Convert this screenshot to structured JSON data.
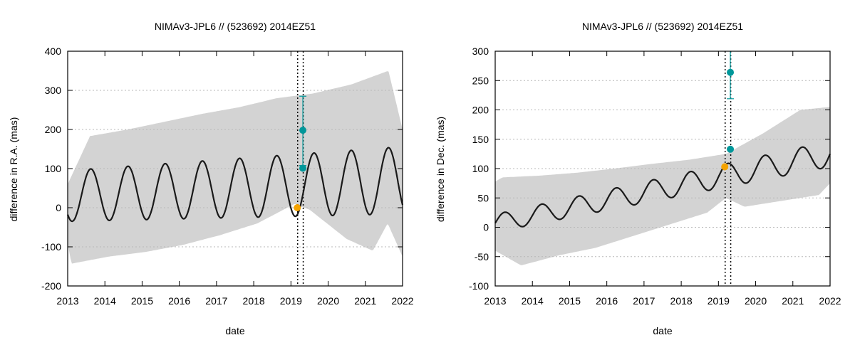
{
  "colors": {
    "envelope": "#d3d3d3",
    "model_line": "#1a1a1a",
    "orange_point": "#f5a300",
    "teal_point": "#00979a",
    "grid": "#b8b8b8",
    "axis": "#000000",
    "vline": "#000000"
  },
  "chart_data": [
    {
      "type": "line",
      "title": "NIMAv3-JPL6 // (523692) 2014EZ51",
      "xlabel": "date",
      "ylabel": "difference in R.A. (mas)",
      "xlim": [
        2013,
        2022
      ],
      "ylim": [
        -200,
        400
      ],
      "xticks": [
        2013,
        2014,
        2015,
        2016,
        2017,
        2018,
        2019,
        2020,
        2021,
        2022
      ],
      "yticks": [
        -200,
        -100,
        0,
        100,
        200,
        300,
        400
      ],
      "grid": "horizontal dotted",
      "legend": "none",
      "model": {
        "period_years": 1.0,
        "peak_phase": 0.62,
        "mean_start": 30,
        "mean_end": 70,
        "amp_start": 65,
        "amp_end": 86
      },
      "envelope": {
        "upper": [
          [
            2013.0,
            60
          ],
          [
            2013.6,
            183
          ],
          [
            2014.62,
            200
          ],
          [
            2015.62,
            220
          ],
          [
            2016.62,
            240
          ],
          [
            2017.62,
            257
          ],
          [
            2018.62,
            280
          ],
          [
            2019.6,
            292
          ],
          [
            2020.62,
            315
          ],
          [
            2021.62,
            350
          ],
          [
            2022.0,
            200
          ]
        ],
        "lower": [
          [
            2013.0,
            -90
          ],
          [
            2013.1,
            -143
          ],
          [
            2014.1,
            -125
          ],
          [
            2015.1,
            -113
          ],
          [
            2016.1,
            -95
          ],
          [
            2017.1,
            -70
          ],
          [
            2018.1,
            -40
          ],
          [
            2019.1,
            10
          ],
          [
            2019.5,
            -5
          ],
          [
            2020.1,
            -50
          ],
          [
            2020.5,
            -80
          ],
          [
            2021.2,
            -110
          ],
          [
            2021.6,
            -40
          ],
          [
            2022.0,
            -125
          ]
        ]
      },
      "vlines": [
        2019.18,
        2019.33
      ],
      "points": [
        {
          "x": 2019.17,
          "y": 0,
          "color": "orange"
        },
        {
          "x": 2019.32,
          "y": 198,
          "yerr_low": 108,
          "yerr_high": 285,
          "color": "teal"
        },
        {
          "x": 2019.32,
          "y": 101,
          "color": "teal"
        }
      ]
    },
    {
      "type": "line",
      "title": "NIMAv3-JPL6 // (523692) 2014EZ51",
      "xlabel": "date",
      "ylabel": "difference in Dec. (mas)",
      "xlim": [
        2013,
        2022
      ],
      "ylim": [
        -100,
        300
      ],
      "xticks": [
        2013,
        2014,
        2015,
        2016,
        2017,
        2018,
        2019,
        2020,
        2021,
        2022
      ],
      "yticks": [
        -100,
        -50,
        0,
        50,
        100,
        150,
        200,
        250,
        300
      ],
      "grid": "horizontal dotted",
      "legend": "none",
      "model": {
        "period_years": 1.0,
        "peak_phase": 0.25,
        "mean_start": 7,
        "mean_end": 125,
        "amp_start": 15,
        "amp_end": 22
      },
      "envelope": {
        "upper": [
          [
            2013.0,
            78
          ],
          [
            2013.2,
            85
          ],
          [
            2014.2,
            88
          ],
          [
            2015.2,
            93
          ],
          [
            2016.2,
            100
          ],
          [
            2017.2,
            108
          ],
          [
            2018.2,
            115
          ],
          [
            2019.2,
            125
          ],
          [
            2020.2,
            160
          ],
          [
            2021.2,
            200
          ],
          [
            2022.0,
            205
          ]
        ],
        "lower": [
          [
            2013.0,
            -40
          ],
          [
            2013.7,
            -65
          ],
          [
            2014.7,
            -48
          ],
          [
            2015.7,
            -35
          ],
          [
            2016.7,
            -15
          ],
          [
            2017.7,
            5
          ],
          [
            2018.7,
            25
          ],
          [
            2019.2,
            50
          ],
          [
            2019.7,
            35
          ],
          [
            2020.7,
            45
          ],
          [
            2021.7,
            55
          ],
          [
            2022.0,
            75
          ]
        ]
      },
      "vlines": [
        2019.18,
        2019.33
      ],
      "points": [
        {
          "x": 2019.17,
          "y": 103,
          "color": "orange"
        },
        {
          "x": 2019.32,
          "y": 264,
          "yerr_low": 219,
          "yerr_high": 300,
          "color": "teal"
        },
        {
          "x": 2019.32,
          "y": 133,
          "color": "teal"
        }
      ]
    }
  ]
}
